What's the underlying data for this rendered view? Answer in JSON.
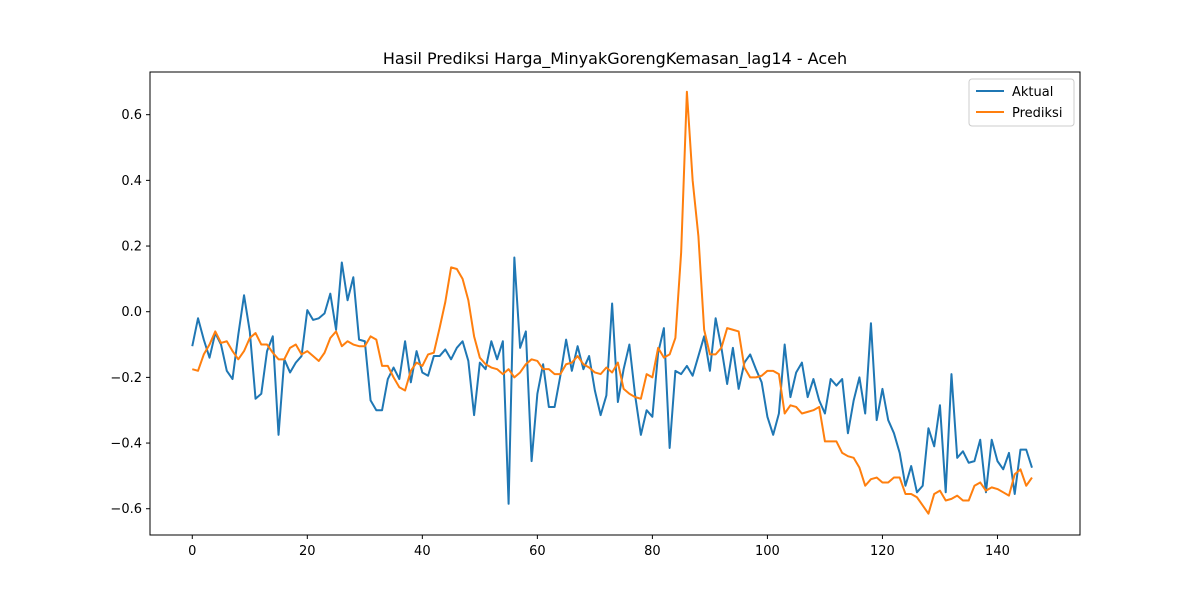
{
  "chart_data": {
    "type": "line",
    "title": "Hasil Prediksi Harga_MinyakGorengKemasan_lag14 - Aceh",
    "xlabel": "",
    "ylabel": "",
    "xlim": [
      -7.35,
      154.35
    ],
    "ylim": [
      -0.68,
      0.73
    ],
    "xticks": [
      0,
      20,
      40,
      60,
      80,
      100,
      120,
      140
    ],
    "yticks": [
      -0.6,
      -0.4,
      -0.2,
      0.0,
      0.2,
      0.4,
      0.6
    ],
    "ytick_labels": [
      "−0.6",
      "−0.4",
      "−0.2",
      "0.0",
      "0.2",
      "0.4",
      "0.6"
    ],
    "legend_position": "top-right",
    "grid": false,
    "series": [
      {
        "name": "Aktual",
        "color": "#1f77b4",
        "values": [
          -0.105,
          -0.02,
          -0.085,
          -0.14,
          -0.065,
          -0.1,
          -0.18,
          -0.205,
          -0.07,
          0.05,
          -0.06,
          -0.265,
          -0.25,
          -0.12,
          -0.075,
          -0.375,
          -0.145,
          -0.185,
          -0.155,
          -0.135,
          0.005,
          -0.025,
          -0.02,
          -0.005,
          0.055,
          -0.055,
          0.15,
          0.035,
          0.105,
          -0.085,
          -0.09,
          -0.27,
          -0.3,
          -0.3,
          -0.205,
          -0.17,
          -0.205,
          -0.09,
          -0.215,
          -0.12,
          -0.185,
          -0.195,
          -0.135,
          -0.135,
          -0.115,
          -0.145,
          -0.11,
          -0.09,
          -0.15,
          -0.315,
          -0.155,
          -0.175,
          -0.09,
          -0.145,
          -0.09,
          -0.585,
          0.165,
          -0.11,
          -0.06,
          -0.455,
          -0.25,
          -0.16,
          -0.29,
          -0.29,
          -0.195,
          -0.085,
          -0.18,
          -0.105,
          -0.175,
          -0.135,
          -0.24,
          -0.315,
          -0.255,
          0.025,
          -0.275,
          -0.175,
          -0.1,
          -0.255,
          -0.375,
          -0.3,
          -0.32,
          -0.125,
          -0.05,
          -0.415,
          -0.18,
          -0.19,
          -0.165,
          -0.195,
          -0.135,
          -0.075,
          -0.18,
          -0.02,
          -0.11,
          -0.22,
          -0.11,
          -0.235,
          -0.155,
          -0.13,
          -0.175,
          -0.215,
          -0.32,
          -0.375,
          -0.31,
          -0.1,
          -0.26,
          -0.185,
          -0.155,
          -0.26,
          -0.205,
          -0.27,
          -0.31,
          -0.205,
          -0.225,
          -0.205,
          -0.37,
          -0.27,
          -0.2,
          -0.31,
          -0.035,
          -0.33,
          -0.235,
          -0.33,
          -0.37,
          -0.43,
          -0.53,
          -0.47,
          -0.55,
          -0.53,
          -0.355,
          -0.41,
          -0.285,
          -0.55,
          -0.19,
          -0.445,
          -0.425,
          -0.46,
          -0.455,
          -0.39,
          -0.55,
          -0.39,
          -0.455,
          -0.48,
          -0.43,
          -0.555,
          -0.42,
          -0.42,
          -0.475
        ]
      },
      {
        "name": "Prediksi",
        "color": "#ff7f0e",
        "values": [
          -0.175,
          -0.18,
          -0.13,
          -0.1,
          -0.06,
          -0.095,
          -0.09,
          -0.12,
          -0.145,
          -0.12,
          -0.08,
          -0.065,
          -0.1,
          -0.1,
          -0.125,
          -0.145,
          -0.145,
          -0.11,
          -0.1,
          -0.13,
          -0.12,
          -0.135,
          -0.15,
          -0.125,
          -0.08,
          -0.06,
          -0.105,
          -0.09,
          -0.1,
          -0.105,
          -0.105,
          -0.075,
          -0.085,
          -0.165,
          -0.165,
          -0.2,
          -0.23,
          -0.24,
          -0.18,
          -0.155,
          -0.165,
          -0.13,
          -0.125,
          -0.05,
          0.03,
          0.135,
          0.13,
          0.1,
          0.035,
          -0.075,
          -0.14,
          -0.16,
          -0.17,
          -0.175,
          -0.19,
          -0.175,
          -0.2,
          -0.185,
          -0.16,
          -0.145,
          -0.15,
          -0.175,
          -0.175,
          -0.19,
          -0.19,
          -0.16,
          -0.155,
          -0.135,
          -0.16,
          -0.17,
          -0.185,
          -0.19,
          -0.17,
          -0.185,
          -0.155,
          -0.235,
          -0.25,
          -0.26,
          -0.265,
          -0.19,
          -0.2,
          -0.11,
          -0.14,
          -0.13,
          -0.08,
          0.18,
          0.67,
          0.4,
          0.23,
          -0.055,
          -0.13,
          -0.13,
          -0.11,
          -0.05,
          -0.055,
          -0.06,
          -0.17,
          -0.2,
          -0.2,
          -0.195,
          -0.18,
          -0.18,
          -0.19,
          -0.31,
          -0.285,
          -0.29,
          -0.31,
          -0.305,
          -0.3,
          -0.29,
          -0.395,
          -0.395,
          -0.395,
          -0.43,
          -0.44,
          -0.445,
          -0.475,
          -0.53,
          -0.51,
          -0.505,
          -0.52,
          -0.52,
          -0.505,
          -0.505,
          -0.555,
          -0.555,
          -0.565,
          -0.59,
          -0.615,
          -0.555,
          -0.545,
          -0.575,
          -0.57,
          -0.56,
          -0.575,
          -0.575,
          -0.53,
          -0.52,
          -0.545,
          -0.535,
          -0.54,
          -0.55,
          -0.56,
          -0.495,
          -0.48,
          -0.53,
          -0.505
        ]
      }
    ]
  }
}
